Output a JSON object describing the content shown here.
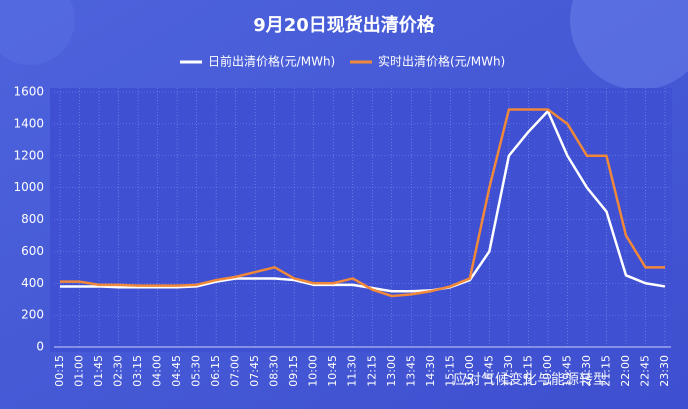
{
  "chart_data": {
    "type": "line",
    "title": "9月20日现货出清价格",
    "categories": [
      "00:15",
      "01:00",
      "01:45",
      "02:30",
      "03:15",
      "04:00",
      "04:45",
      "05:30",
      "06:15",
      "07:00",
      "07:45",
      "08:30",
      "09:15",
      "10:00",
      "10:45",
      "11:30",
      "12:15",
      "13:00",
      "13:45",
      "14:30",
      "15:15",
      "16:00",
      "16:45",
      "17:30",
      "18:15",
      "19:00",
      "19:45",
      "20:30",
      "21:15",
      "22:00",
      "22:45",
      "23:30"
    ],
    "series": [
      {
        "name": "日前出清价格(元/MWh)",
        "color": "#ffffff",
        "values": [
          380,
          380,
          380,
          375,
          375,
          375,
          375,
          380,
          410,
          430,
          430,
          430,
          420,
          390,
          390,
          390,
          370,
          350,
          350,
          355,
          375,
          420,
          600,
          1200,
          1350,
          1480,
          1200,
          1000,
          850,
          450,
          400,
          380
        ]
      },
      {
        "name": "实时出清价格(元/MWh)",
        "color": "#f0883a",
        "values": [
          410,
          410,
          390,
          390,
          385,
          385,
          385,
          390,
          420,
          440,
          470,
          500,
          430,
          400,
          400,
          430,
          360,
          320,
          330,
          350,
          380,
          430,
          1000,
          1490,
          1490,
          1490,
          1400,
          1200,
          1200,
          700,
          500,
          500
        ]
      }
    ],
    "ylim": [
      0,
      1600
    ],
    "yticks": [
      0,
      200,
      400,
      600,
      800,
      1000,
      1200,
      1400,
      1600
    ],
    "grid": true,
    "watermark": "应对气候变化与能源转型"
  }
}
